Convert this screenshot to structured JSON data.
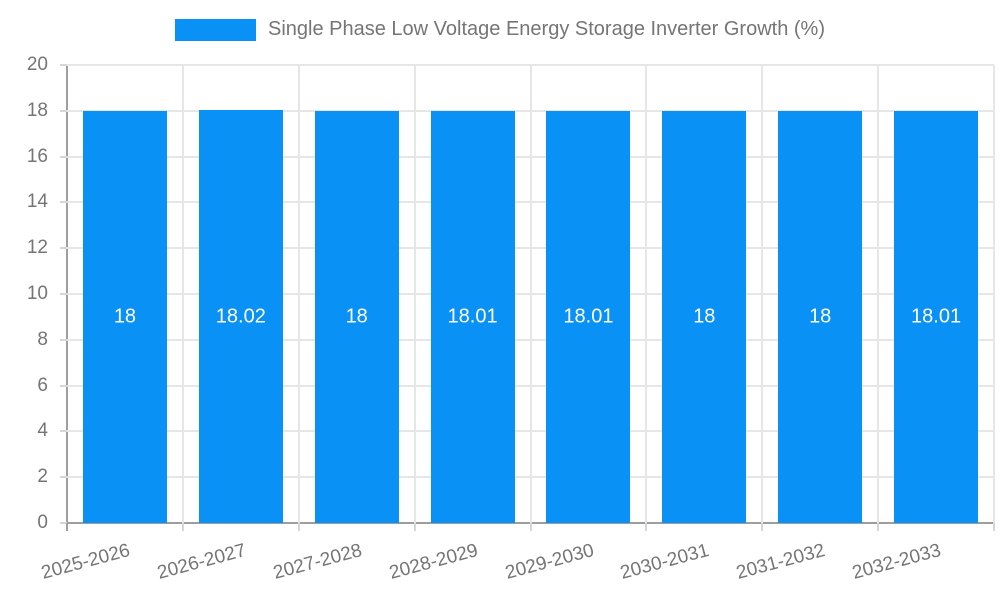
{
  "chart_data": {
    "type": "bar",
    "title": "Single Phase Low Voltage Energy Storage Inverter Growth (%)",
    "categories": [
      "2025-2026",
      "2026-2027",
      "2027-2028",
      "2028-2029",
      "2029-2030",
      "2030-2031",
      "2031-2032",
      "2032-2033"
    ],
    "values": [
      18,
      18.02,
      18,
      18.01,
      18.01,
      18,
      18,
      18.01
    ],
    "xlabel": "",
    "ylabel": "",
    "ylim": [
      0,
      20
    ],
    "ytick_step": 2,
    "yticks": [
      0,
      2,
      4,
      6,
      8,
      10,
      12,
      14,
      16,
      18,
      20
    ],
    "grid": true,
    "legend_position": "top-center",
    "bar_label_position": "inside-center",
    "xtick_rotation_deg": 15,
    "colors": {
      "bar": "#0991f5",
      "grid": "#e6e6e6",
      "axis": "#9e9e9e",
      "tick": "#d6d6d6",
      "text": "#757575",
      "bar_label": "#ffffff",
      "background": "#ffffff"
    }
  }
}
